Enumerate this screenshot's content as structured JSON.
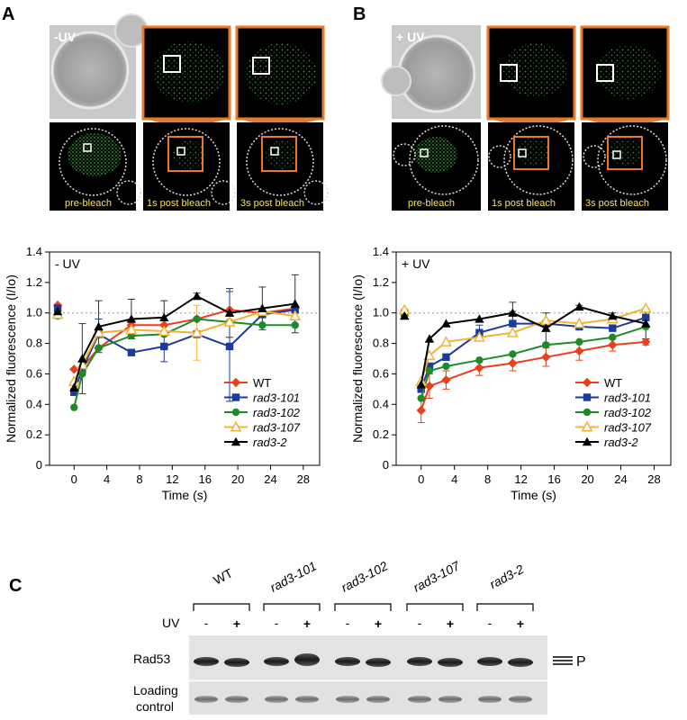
{
  "panels": {
    "a_letter": "A",
    "b_letter": "B",
    "c_letter": "C"
  },
  "micrographs": {
    "a_condition": "-UV",
    "b_condition": "+ UV",
    "labels": [
      "pre-bleach",
      "1s post bleach",
      "3s post bleach"
    ]
  },
  "colors": {
    "WT": "#e8401c",
    "rad3-101": "#1c3a9e",
    "rad3-102": "#1e8a2a",
    "rad3-107": "#f0b434",
    "rad3-2": "#000000",
    "frame_orange": "#e87a2a",
    "fluor_green": "#33c733"
  },
  "chart_data": [
    {
      "type": "line",
      "panel_text": "- UV",
      "ylabel": "Normalized fluorescence (I/Io)",
      "xlabel": "Time (s)",
      "ylim": [
        0,
        1.4
      ],
      "yticks": [
        0,
        0.2,
        0.4,
        0.6,
        0.8,
        1.0,
        1.2,
        1.4
      ],
      "xticks": [
        0,
        4,
        8,
        12,
        16,
        20,
        24,
        28
      ],
      "reference_line": 1.0,
      "legend_position": "bottom-right",
      "series": [
        {
          "name": "WT",
          "marker": "diamond",
          "x": [
            -2,
            0,
            1,
            3,
            7,
            11,
            15,
            19,
            23,
            27
          ],
          "y": [
            1.05,
            0.63,
            0.64,
            0.77,
            0.92,
            0.92,
            0.96,
            1.02,
            1.0,
            1.03
          ]
        },
        {
          "name": "rad3-101",
          "marker": "square",
          "x": [
            -2,
            0,
            1,
            3,
            7,
            11,
            15,
            19,
            23,
            27
          ],
          "y": [
            1.03,
            0.48,
            0.63,
            0.86,
            0.74,
            0.78,
            0.86,
            0.78,
            0.99,
            1.02
          ]
        },
        {
          "name": "rad3-102",
          "marker": "circle",
          "x": [
            -2,
            0,
            1,
            3,
            7,
            11,
            15,
            19,
            23,
            27
          ],
          "y": [
            0.98,
            0.38,
            0.6,
            0.77,
            0.85,
            0.86,
            0.96,
            0.94,
            0.92,
            0.92
          ]
        },
        {
          "name": "rad3-107",
          "marker": "triangle-open",
          "x": [
            -2,
            0,
            1,
            3,
            7,
            11,
            15,
            19,
            23,
            27
          ],
          "y": [
            0.99,
            0.55,
            0.66,
            0.87,
            0.89,
            0.88,
            0.87,
            0.94,
            1.01,
            0.98
          ]
        },
        {
          "name": "rad3-2",
          "marker": "triangle",
          "x": [
            -2,
            0,
            1,
            3,
            7,
            11,
            15,
            19,
            23,
            27
          ],
          "y": [
            1.01,
            0.51,
            0.7,
            0.91,
            0.96,
            0.97,
            1.11,
            1.0,
            1.03,
            1.06
          ]
        }
      ],
      "error_bars": [
        {
          "series": "rad3-2",
          "x": [
            1,
            3,
            7,
            11,
            15,
            19,
            23,
            27
          ],
          "err": [
            0.23,
            0.17,
            0.13,
            0.11,
            0.02,
            0.16,
            0.14,
            0.19
          ]
        },
        {
          "series": "rad3-101",
          "x": [
            3,
            11,
            19
          ],
          "err": [
            0.1,
            0.1,
            0.36
          ]
        },
        {
          "series": "rad3-107",
          "x": [
            15
          ],
          "err": [
            0.18
          ]
        }
      ]
    },
    {
      "type": "line",
      "panel_text": "+ UV",
      "ylabel": "Normalized fluorescence (I/Io)",
      "xlabel": "Time (s)",
      "ylim": [
        0,
        1.4
      ],
      "yticks": [
        0,
        0.2,
        0.4,
        0.6,
        0.8,
        1.0,
        1.2,
        1.4
      ],
      "xticks": [
        0,
        4,
        8,
        12,
        16,
        20,
        24,
        28
      ],
      "reference_line": 1.0,
      "legend_position": "bottom-right",
      "series": [
        {
          "name": "WT",
          "marker": "diamond",
          "x": [
            -2,
            0,
            1,
            3,
            7,
            11,
            15,
            19,
            23,
            27
          ],
          "y": [
            1.01,
            0.36,
            0.52,
            0.56,
            0.64,
            0.67,
            0.71,
            0.75,
            0.79,
            0.81
          ]
        },
        {
          "name": "rad3-101",
          "marker": "square",
          "x": [
            -2,
            0,
            1,
            3,
            7,
            11,
            15,
            19,
            23,
            27
          ],
          "y": [
            1.0,
            0.5,
            0.65,
            0.71,
            0.87,
            0.93,
            0.93,
            0.91,
            0.9,
            0.97
          ]
        },
        {
          "name": "rad3-102",
          "marker": "circle",
          "x": [
            -2,
            0,
            1,
            3,
            7,
            11,
            15,
            19,
            23,
            27
          ],
          "y": [
            0.99,
            0.44,
            0.62,
            0.65,
            0.69,
            0.73,
            0.79,
            0.81,
            0.84,
            0.91
          ]
        },
        {
          "name": "rad3-107",
          "marker": "triangle-open",
          "x": [
            -2,
            0,
            1,
            3,
            7,
            11,
            15,
            19,
            23,
            27
          ],
          "y": [
            1.02,
            0.55,
            0.72,
            0.81,
            0.84,
            0.87,
            0.95,
            0.93,
            0.96,
            1.03
          ]
        },
        {
          "name": "rad3-2",
          "marker": "triangle",
          "x": [
            -2,
            0,
            1,
            3,
            7,
            11,
            15,
            19,
            23,
            27
          ],
          "y": [
            0.98,
            0.53,
            0.83,
            0.93,
            0.96,
            1.0,
            0.9,
            1.04,
            0.98,
            0.93
          ]
        }
      ],
      "error_bars": [
        {
          "series": "WT",
          "x": [
            0,
            1,
            3,
            7,
            11,
            15,
            19,
            23,
            27
          ],
          "err": [
            0.08,
            0.08,
            0.06,
            0.05,
            0.05,
            0.06,
            0.06,
            0.04,
            0.02
          ]
        },
        {
          "series": "rad3-2",
          "x": [
            11,
            15,
            19,
            23,
            27
          ],
          "err": [
            0.07,
            0.1,
            0.01,
            0.02,
            0.1
          ]
        },
        {
          "series": "rad3-101",
          "x": [
            7,
            11
          ],
          "err": [
            0.05,
            0.08
          ]
        }
      ]
    }
  ],
  "blot": {
    "strains": [
      "WT",
      "rad3-101",
      "rad3-102",
      "rad3-107",
      "rad3-2"
    ],
    "uv_label": "UV",
    "minus": "-",
    "plus": "+",
    "rad53_label": "Rad53",
    "loading_label_1": "Loading",
    "loading_label_2": "control",
    "p_label": "P"
  }
}
